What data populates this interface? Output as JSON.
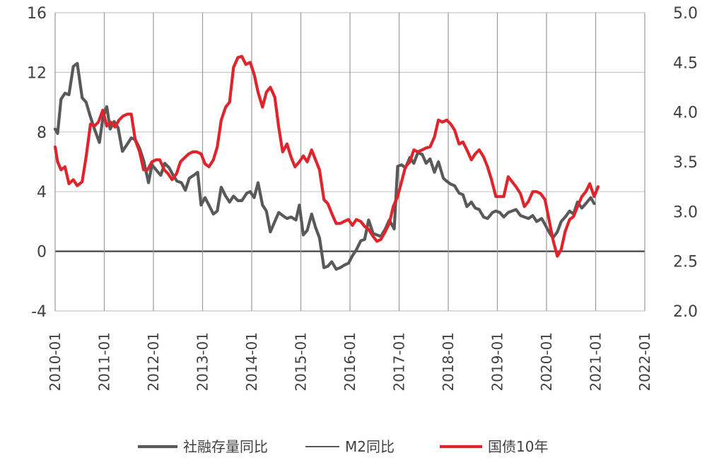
{
  "chart_data": {
    "type": "line",
    "title": "",
    "x_tick_labels": [
      "2010-01",
      "2011-01",
      "2012-01",
      "2013-01",
      "2014-01",
      "2015-01",
      "2016-01",
      "2017-01",
      "2018-01",
      "2019-01",
      "2020-01",
      "2021-01",
      "2022-01"
    ],
    "x_range": [
      2010.0,
      2022.0
    ],
    "y_left": {
      "ticks": [
        "16",
        "12",
        "8",
        "4",
        "0",
        "-4"
      ],
      "range": [
        -4,
        16
      ]
    },
    "y_right": {
      "ticks": [
        "5.0",
        "4.5",
        "4.0",
        "3.5",
        "3.0",
        "2.5",
        "2.0"
      ],
      "range": [
        2.0,
        5.0
      ]
    },
    "grid": "both",
    "zero_line": true,
    "legend_position": "bottom",
    "series": [
      {
        "name": "社融存量同比",
        "axis": "left",
        "color": "#595959",
        "points": [
          [
            2010.0,
            8.2
          ],
          [
            2010.05,
            7.9
          ],
          [
            2010.12,
            10.2
          ],
          [
            2010.2,
            10.6
          ],
          [
            2010.28,
            10.5
          ],
          [
            2010.37,
            12.4
          ],
          [
            2010.45,
            12.6
          ],
          [
            2010.55,
            10.3
          ],
          [
            2010.63,
            10.0
          ],
          [
            2010.72,
            9.0
          ],
          [
            2010.8,
            8.2
          ],
          [
            2010.9,
            7.3
          ],
          [
            2010.97,
            8.9
          ],
          [
            2011.05,
            9.7
          ],
          [
            2011.12,
            8.2
          ],
          [
            2011.2,
            8.7
          ],
          [
            2011.28,
            8.3
          ],
          [
            2011.37,
            6.7
          ],
          [
            2011.45,
            7.1
          ],
          [
            2011.55,
            7.6
          ],
          [
            2011.63,
            7.5
          ],
          [
            2011.72,
            6.9
          ],
          [
            2011.8,
            6.1
          ],
          [
            2011.9,
            4.6
          ],
          [
            2011.97,
            5.8
          ],
          [
            2012.07,
            5.4
          ],
          [
            2012.15,
            5.1
          ],
          [
            2012.23,
            5.9
          ],
          [
            2012.32,
            5.6
          ],
          [
            2012.4,
            5.1
          ],
          [
            2012.48,
            4.7
          ],
          [
            2012.57,
            4.6
          ],
          [
            2012.65,
            4.1
          ],
          [
            2012.73,
            4.9
          ],
          [
            2012.82,
            5.1
          ],
          [
            2012.9,
            5.3
          ],
          [
            2012.97,
            3.1
          ],
          [
            2013.05,
            3.6
          ],
          [
            2013.13,
            3.1
          ],
          [
            2013.22,
            2.5
          ],
          [
            2013.3,
            2.7
          ],
          [
            2013.38,
            4.3
          ],
          [
            2013.47,
            3.7
          ],
          [
            2013.55,
            3.3
          ],
          [
            2013.63,
            3.7
          ],
          [
            2013.72,
            3.4
          ],
          [
            2013.8,
            3.4
          ],
          [
            2013.9,
            3.9
          ],
          [
            2013.97,
            4.0
          ],
          [
            2014.05,
            3.6
          ],
          [
            2014.13,
            4.6
          ],
          [
            2014.22,
            3.1
          ],
          [
            2014.3,
            2.7
          ],
          [
            2014.38,
            1.3
          ],
          [
            2014.47,
            2.0
          ],
          [
            2014.55,
            2.6
          ],
          [
            2014.63,
            2.4
          ],
          [
            2014.72,
            2.2
          ],
          [
            2014.8,
            2.3
          ],
          [
            2014.9,
            2.1
          ],
          [
            2014.97,
            3.1
          ],
          [
            2015.05,
            1.1
          ],
          [
            2015.13,
            1.4
          ],
          [
            2015.22,
            2.5
          ],
          [
            2015.3,
            1.6
          ],
          [
            2015.38,
            0.9
          ],
          [
            2015.47,
            -1.1
          ],
          [
            2015.55,
            -1.0
          ],
          [
            2015.63,
            -0.7
          ],
          [
            2015.72,
            -1.2
          ],
          [
            2015.8,
            -1.1
          ],
          [
            2015.9,
            -0.9
          ],
          [
            2015.97,
            -0.8
          ],
          [
            2016.05,
            -0.3
          ],
          [
            2016.13,
            0.1
          ],
          [
            2016.22,
            0.7
          ],
          [
            2016.3,
            0.8
          ],
          [
            2016.38,
            2.1
          ],
          [
            2016.47,
            1.2
          ],
          [
            2016.55,
            1.1
          ],
          [
            2016.63,
            1.0
          ],
          [
            2016.72,
            1.5
          ],
          [
            2016.8,
            2.1
          ],
          [
            2016.9,
            1.5
          ],
          [
            2016.97,
            5.7
          ],
          [
            2017.05,
            5.8
          ],
          [
            2017.13,
            5.6
          ],
          [
            2017.22,
            6.3
          ],
          [
            2017.3,
            5.9
          ],
          [
            2017.38,
            6.6
          ],
          [
            2017.47,
            6.5
          ],
          [
            2017.55,
            5.9
          ],
          [
            2017.63,
            6.2
          ],
          [
            2017.72,
            5.3
          ],
          [
            2017.8,
            6.0
          ],
          [
            2017.9,
            4.9
          ],
          [
            2017.97,
            4.7
          ],
          [
            2018.05,
            4.5
          ],
          [
            2018.13,
            4.4
          ],
          [
            2018.22,
            3.9
          ],
          [
            2018.3,
            3.8
          ],
          [
            2018.38,
            3.0
          ],
          [
            2018.47,
            3.3
          ],
          [
            2018.55,
            2.9
          ],
          [
            2018.63,
            2.8
          ],
          [
            2018.72,
            2.3
          ],
          [
            2018.8,
            2.2
          ],
          [
            2018.9,
            2.6
          ],
          [
            2018.97,
            2.7
          ],
          [
            2019.05,
            2.6
          ],
          [
            2019.13,
            2.3
          ],
          [
            2019.22,
            2.6
          ],
          [
            2019.3,
            2.7
          ],
          [
            2019.38,
            2.8
          ],
          [
            2019.47,
            2.4
          ],
          [
            2019.55,
            2.3
          ],
          [
            2019.63,
            2.2
          ],
          [
            2019.72,
            2.4
          ],
          [
            2019.8,
            2.0
          ],
          [
            2019.9,
            2.2
          ],
          [
            2019.97,
            1.8
          ],
          [
            2020.05,
            1.3
          ],
          [
            2020.13,
            0.9
          ],
          [
            2020.22,
            1.3
          ],
          [
            2020.3,
            2.0
          ],
          [
            2020.38,
            2.3
          ],
          [
            2020.47,
            2.7
          ],
          [
            2020.55,
            2.5
          ],
          [
            2020.63,
            3.3
          ],
          [
            2020.72,
            2.9
          ],
          [
            2020.8,
            3.2
          ],
          [
            2020.9,
            3.6
          ],
          [
            2020.97,
            3.2
          ]
        ]
      },
      {
        "name": "M2同比",
        "axis": "left",
        "color": "#595959",
        "points": []
      },
      {
        "name": "国债10年",
        "axis": "right",
        "color": "#e0242b",
        "points": [
          [
            2010.0,
            3.65
          ],
          [
            2010.05,
            3.5
          ],
          [
            2010.12,
            3.42
          ],
          [
            2010.2,
            3.45
          ],
          [
            2010.28,
            3.28
          ],
          [
            2010.37,
            3.32
          ],
          [
            2010.45,
            3.26
          ],
          [
            2010.55,
            3.3
          ],
          [
            2010.63,
            3.55
          ],
          [
            2010.72,
            3.88
          ],
          [
            2010.8,
            3.86
          ],
          [
            2010.88,
            3.9
          ],
          [
            2010.97,
            4.02
          ],
          [
            2011.05,
            3.86
          ],
          [
            2011.13,
            3.9
          ],
          [
            2011.22,
            3.85
          ],
          [
            2011.3,
            3.92
          ],
          [
            2011.38,
            3.96
          ],
          [
            2011.47,
            3.98
          ],
          [
            2011.55,
            3.98
          ],
          [
            2011.63,
            3.72
          ],
          [
            2011.72,
            3.6
          ],
          [
            2011.8,
            3.42
          ],
          [
            2011.88,
            3.42
          ],
          [
            2011.97,
            3.5
          ],
          [
            2012.05,
            3.52
          ],
          [
            2012.13,
            3.52
          ],
          [
            2012.22,
            3.42
          ],
          [
            2012.3,
            3.38
          ],
          [
            2012.38,
            3.32
          ],
          [
            2012.47,
            3.38
          ],
          [
            2012.55,
            3.5
          ],
          [
            2012.63,
            3.54
          ],
          [
            2012.72,
            3.58
          ],
          [
            2012.8,
            3.6
          ],
          [
            2012.88,
            3.6
          ],
          [
            2012.97,
            3.58
          ],
          [
            2013.05,
            3.48
          ],
          [
            2013.13,
            3.45
          ],
          [
            2013.22,
            3.52
          ],
          [
            2013.3,
            3.65
          ],
          [
            2013.38,
            3.92
          ],
          [
            2013.47,
            4.05
          ],
          [
            2013.55,
            4.1
          ],
          [
            2013.63,
            4.45
          ],
          [
            2013.72,
            4.55
          ],
          [
            2013.8,
            4.56
          ],
          [
            2013.88,
            4.48
          ],
          [
            2013.97,
            4.5
          ],
          [
            2014.05,
            4.38
          ],
          [
            2014.13,
            4.2
          ],
          [
            2014.22,
            4.05
          ],
          [
            2014.3,
            4.2
          ],
          [
            2014.38,
            4.25
          ],
          [
            2014.47,
            4.15
          ],
          [
            2014.55,
            3.85
          ],
          [
            2014.63,
            3.6
          ],
          [
            2014.72,
            3.68
          ],
          [
            2014.8,
            3.55
          ],
          [
            2014.88,
            3.45
          ],
          [
            2014.97,
            3.5
          ],
          [
            2015.05,
            3.56
          ],
          [
            2015.13,
            3.5
          ],
          [
            2015.22,
            3.62
          ],
          [
            2015.3,
            3.52
          ],
          [
            2015.38,
            3.42
          ],
          [
            2015.47,
            3.12
          ],
          [
            2015.55,
            3.08
          ],
          [
            2015.63,
            2.98
          ],
          [
            2015.72,
            2.88
          ],
          [
            2015.8,
            2.88
          ],
          [
            2015.88,
            2.9
          ],
          [
            2015.97,
            2.92
          ],
          [
            2016.05,
            2.86
          ],
          [
            2016.13,
            2.92
          ],
          [
            2016.22,
            2.9
          ],
          [
            2016.3,
            2.85
          ],
          [
            2016.38,
            2.82
          ],
          [
            2016.47,
            2.75
          ],
          [
            2016.55,
            2.7
          ],
          [
            2016.63,
            2.72
          ],
          [
            2016.72,
            2.8
          ],
          [
            2016.8,
            2.88
          ],
          [
            2016.88,
            3.05
          ],
          [
            2016.97,
            3.15
          ],
          [
            2017.05,
            3.3
          ],
          [
            2017.13,
            3.45
          ],
          [
            2017.22,
            3.5
          ],
          [
            2017.3,
            3.62
          ],
          [
            2017.38,
            3.6
          ],
          [
            2017.47,
            3.62
          ],
          [
            2017.55,
            3.64
          ],
          [
            2017.63,
            3.65
          ],
          [
            2017.72,
            3.75
          ],
          [
            2017.8,
            3.92
          ],
          [
            2017.88,
            3.9
          ],
          [
            2017.97,
            3.92
          ],
          [
            2018.05,
            3.88
          ],
          [
            2018.13,
            3.82
          ],
          [
            2018.22,
            3.68
          ],
          [
            2018.3,
            3.7
          ],
          [
            2018.38,
            3.62
          ],
          [
            2018.47,
            3.52
          ],
          [
            2018.55,
            3.58
          ],
          [
            2018.63,
            3.62
          ],
          [
            2018.72,
            3.55
          ],
          [
            2018.8,
            3.45
          ],
          [
            2018.88,
            3.32
          ],
          [
            2018.97,
            3.15
          ],
          [
            2019.05,
            3.15
          ],
          [
            2019.13,
            3.15
          ],
          [
            2019.22,
            3.35
          ],
          [
            2019.3,
            3.3
          ],
          [
            2019.38,
            3.25
          ],
          [
            2019.47,
            3.18
          ],
          [
            2019.55,
            3.05
          ],
          [
            2019.63,
            3.1
          ],
          [
            2019.72,
            3.2
          ],
          [
            2019.8,
            3.2
          ],
          [
            2019.88,
            3.18
          ],
          [
            2019.97,
            3.12
          ],
          [
            2020.05,
            2.92
          ],
          [
            2020.13,
            2.72
          ],
          [
            2020.22,
            2.55
          ],
          [
            2020.3,
            2.62
          ],
          [
            2020.38,
            2.8
          ],
          [
            2020.47,
            2.92
          ],
          [
            2020.55,
            2.95
          ],
          [
            2020.63,
            3.05
          ],
          [
            2020.72,
            3.15
          ],
          [
            2020.8,
            3.2
          ],
          [
            2020.88,
            3.28
          ],
          [
            2020.97,
            3.15
          ],
          [
            2021.05,
            3.25
          ]
        ]
      }
    ]
  }
}
